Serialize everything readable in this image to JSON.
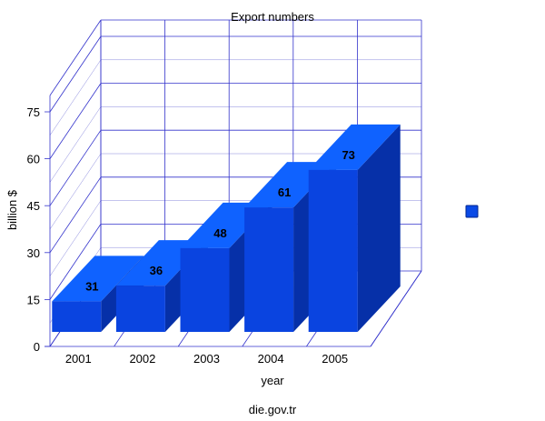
{
  "chart_data": {
    "type": "bar",
    "title": "Export numbers",
    "xlabel": "year",
    "ylabel": "billion $",
    "source": "die.gov.tr",
    "categories": [
      "2001",
      "2002",
      "2003",
      "2004",
      "2005"
    ],
    "values": [
      31,
      36,
      48,
      61,
      73
    ],
    "data_labels": [
      "31",
      "36",
      "48",
      "61",
      "73"
    ],
    "y_ticks": [
      0,
      15,
      30,
      45,
      60,
      75
    ],
    "ylim": [
      0,
      75
    ],
    "grid": true,
    "style": "3d",
    "legend": {
      "placement": "right",
      "swatch_color": "#0a4ae6",
      "label": ""
    },
    "colors": {
      "bar_front": "#0a44e0",
      "bar_top": "#0f62ff",
      "bar_side": "#0630a8",
      "grid": "#3333cc"
    }
  }
}
